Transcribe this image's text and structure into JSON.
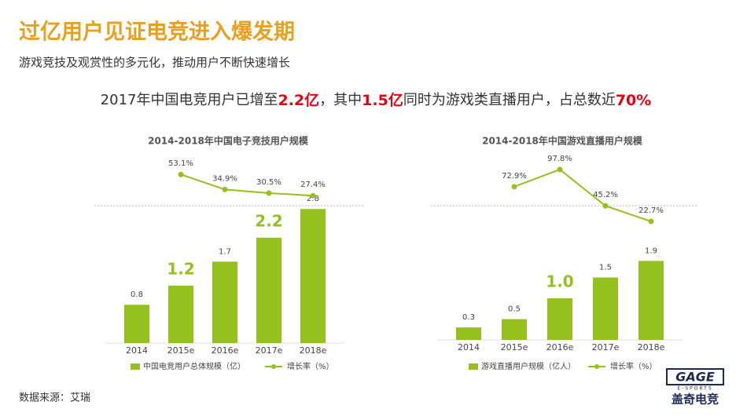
{
  "header": {
    "title": "过亿用户见证电竞进入爆发期",
    "subtitle": "游戏竞技及观赏性的多元化，推动用户不断快速增长",
    "highlight": [
      {
        "text": "2017年中国电竞用户已增至",
        "emphasis": false
      },
      {
        "text": "2.2亿",
        "emphasis": true
      },
      {
        "text": "，其中",
        "emphasis": false
      },
      {
        "text": "1.5亿",
        "emphasis": true
      },
      {
        "text": "同时为游戏类直播用户，占总数近",
        "emphasis": false
      },
      {
        "text": "70%",
        "emphasis": true
      }
    ]
  },
  "chart_data": [
    {
      "type": "combo",
      "title": "2014-2018年中国电子竞技用户规模",
      "categories": [
        "2014",
        "2015e",
        "2016e",
        "2017e",
        "2018e"
      ],
      "highlight": [
        1,
        3
      ],
      "highlight_color": "#95c11f",
      "series": [
        {
          "name": "中国电竞用户总体规模（亿）",
          "type": "bar",
          "color": "#95c11f",
          "values": [
            0.8,
            1.2,
            1.7,
            2.2,
            2.8
          ]
        },
        {
          "name": "增长率（%）",
          "type": "line",
          "color": "#95c11f",
          "values": [
            null,
            53.1,
            34.9,
            30.5,
            27.4
          ],
          "value_labels": [
            null,
            "53.1%",
            "34.9%",
            "30.5%",
            "27.4%"
          ]
        }
      ]
    },
    {
      "type": "combo",
      "title": "2014-2018年中国游戏直播用户规模",
      "categories": [
        "2014",
        "2015e",
        "2016e",
        "2017e",
        "2018e"
      ],
      "highlight": [
        2
      ],
      "highlight_color": "#95c11f",
      "series": [
        {
          "name": "游戏直播用户规模（亿人）",
          "type": "bar",
          "color": "#95c11f",
          "values": [
            0.3,
            0.5,
            1.0,
            1.5,
            1.9
          ],
          "value_labels": [
            "0.3",
            "0.5",
            "1.0",
            "1.5",
            "1.9"
          ]
        },
        {
          "name": "增长率（%）",
          "type": "line",
          "color": "#95c11f",
          "values": [
            null,
            72.9,
            97.8,
            45.2,
            22.7
          ],
          "value_labels": [
            null,
            "72.9%",
            "97.8%",
            "45.2%",
            "22.7%"
          ]
        }
      ]
    }
  ],
  "source": "数据来源：艾瑞",
  "logo": {
    "brand": "GAGE",
    "tag": "E-SPORTS",
    "name": "盖奇电竞"
  }
}
